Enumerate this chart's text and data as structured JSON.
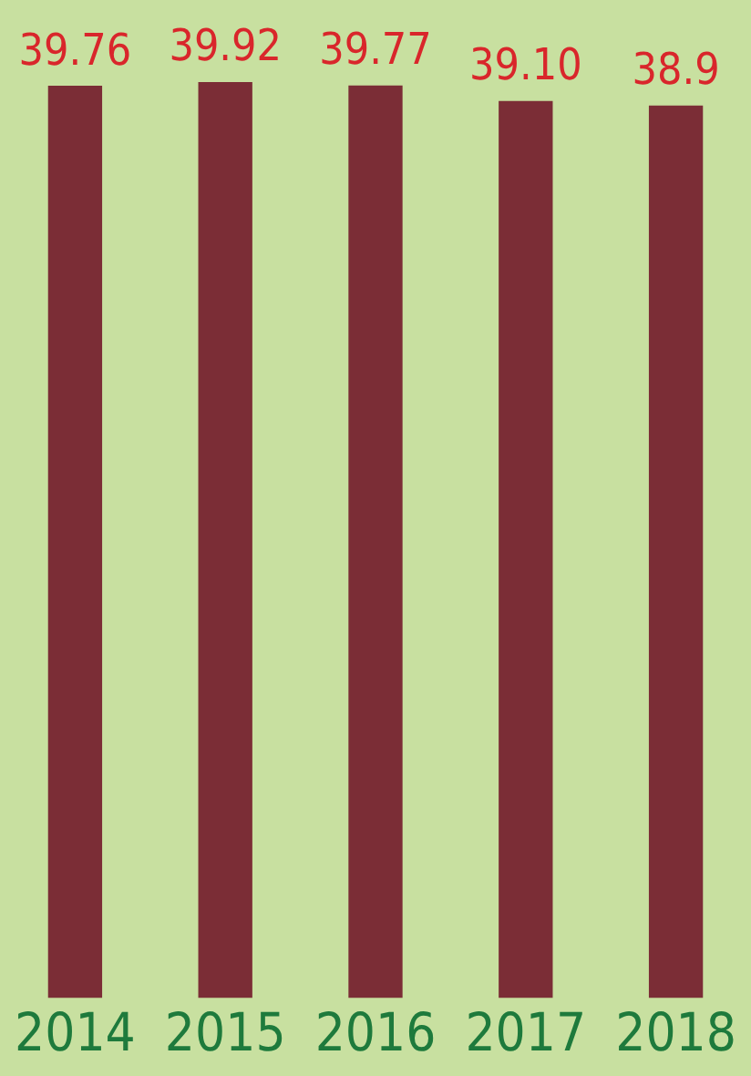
{
  "chart_data": {
    "type": "bar",
    "categories": [
      "2014",
      "2015",
      "2016",
      "2017",
      "2018"
    ],
    "values": [
      39.76,
      39.92,
      39.77,
      39.1,
      38.9
    ],
    "value_labels": [
      "39.76",
      "39.92",
      "39.77",
      "39.10",
      "38.9"
    ],
    "color": "#7b2d36",
    "grid": false,
    "legend": false,
    "tick_labels": "x"
  }
}
